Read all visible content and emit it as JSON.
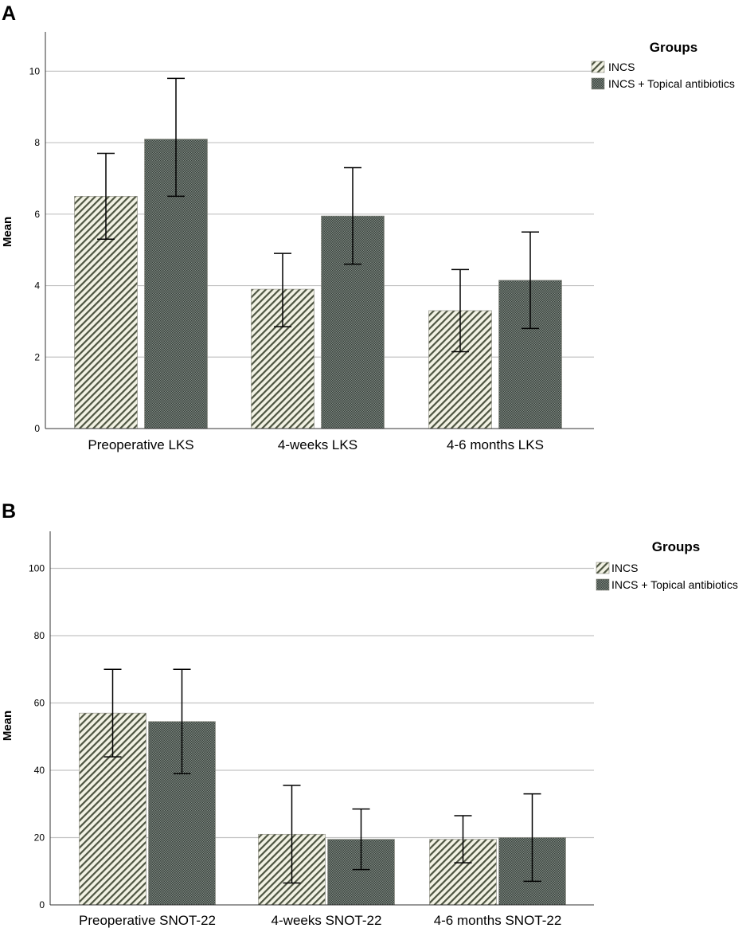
{
  "colors": {
    "incs_fill": "#f2f2e4",
    "incs_stripe": "#4e5542",
    "combo_fill": "#7c8780",
    "combo_dot": "#3a423d",
    "gridline": "#c3c3c3",
    "axis": "#333333",
    "error_bar": "#000000"
  },
  "chart_data": [
    {
      "panel": "A",
      "type": "bar",
      "title": "",
      "xlabel": "",
      "ylabel": "Mean",
      "ylim": [
        0,
        11.1
      ],
      "yticks": [
        0,
        2,
        4,
        6,
        8,
        10
      ],
      "grid": true,
      "legend_position": "top-right",
      "legend_title": "Groups",
      "categories": [
        "Preoperative LKS",
        "4-weeks LKS",
        "4-6 months LKS"
      ],
      "series": [
        {
          "name": "INCS",
          "pattern": "stripes",
          "values": [
            6.5,
            3.9,
            3.3
          ],
          "error_low": [
            5.3,
            2.85,
            2.15
          ],
          "error_high": [
            7.7,
            4.9,
            4.45
          ]
        },
        {
          "name": "INCS + Topical antibiotics",
          "pattern": "dots",
          "values": [
            8.1,
            5.95,
            4.15
          ],
          "error_low": [
            6.5,
            4.6,
            2.8
          ],
          "error_high": [
            9.8,
            7.3,
            5.5
          ]
        }
      ]
    },
    {
      "panel": "B",
      "type": "bar",
      "title": "",
      "xlabel": "",
      "ylabel": "Mean",
      "ylim": [
        0,
        111
      ],
      "yticks": [
        0,
        20,
        40,
        60,
        80,
        100
      ],
      "grid": true,
      "legend_position": "top-right",
      "legend_title": "Groups",
      "categories": [
        "Preoperative SNOT-22",
        "4-weeks SNOT-22",
        "4-6 months SNOT-22"
      ],
      "series": [
        {
          "name": "INCS",
          "pattern": "stripes",
          "values": [
            57,
            21,
            19.5
          ],
          "error_low": [
            44,
            6.5,
            12.5
          ],
          "error_high": [
            70,
            35.5,
            26.5
          ]
        },
        {
          "name": "INCS + Topical antibiotics",
          "pattern": "dots",
          "values": [
            54.5,
            19.5,
            20
          ],
          "error_low": [
            39,
            10.5,
            7
          ],
          "error_high": [
            70,
            28.5,
            33
          ]
        }
      ]
    }
  ]
}
